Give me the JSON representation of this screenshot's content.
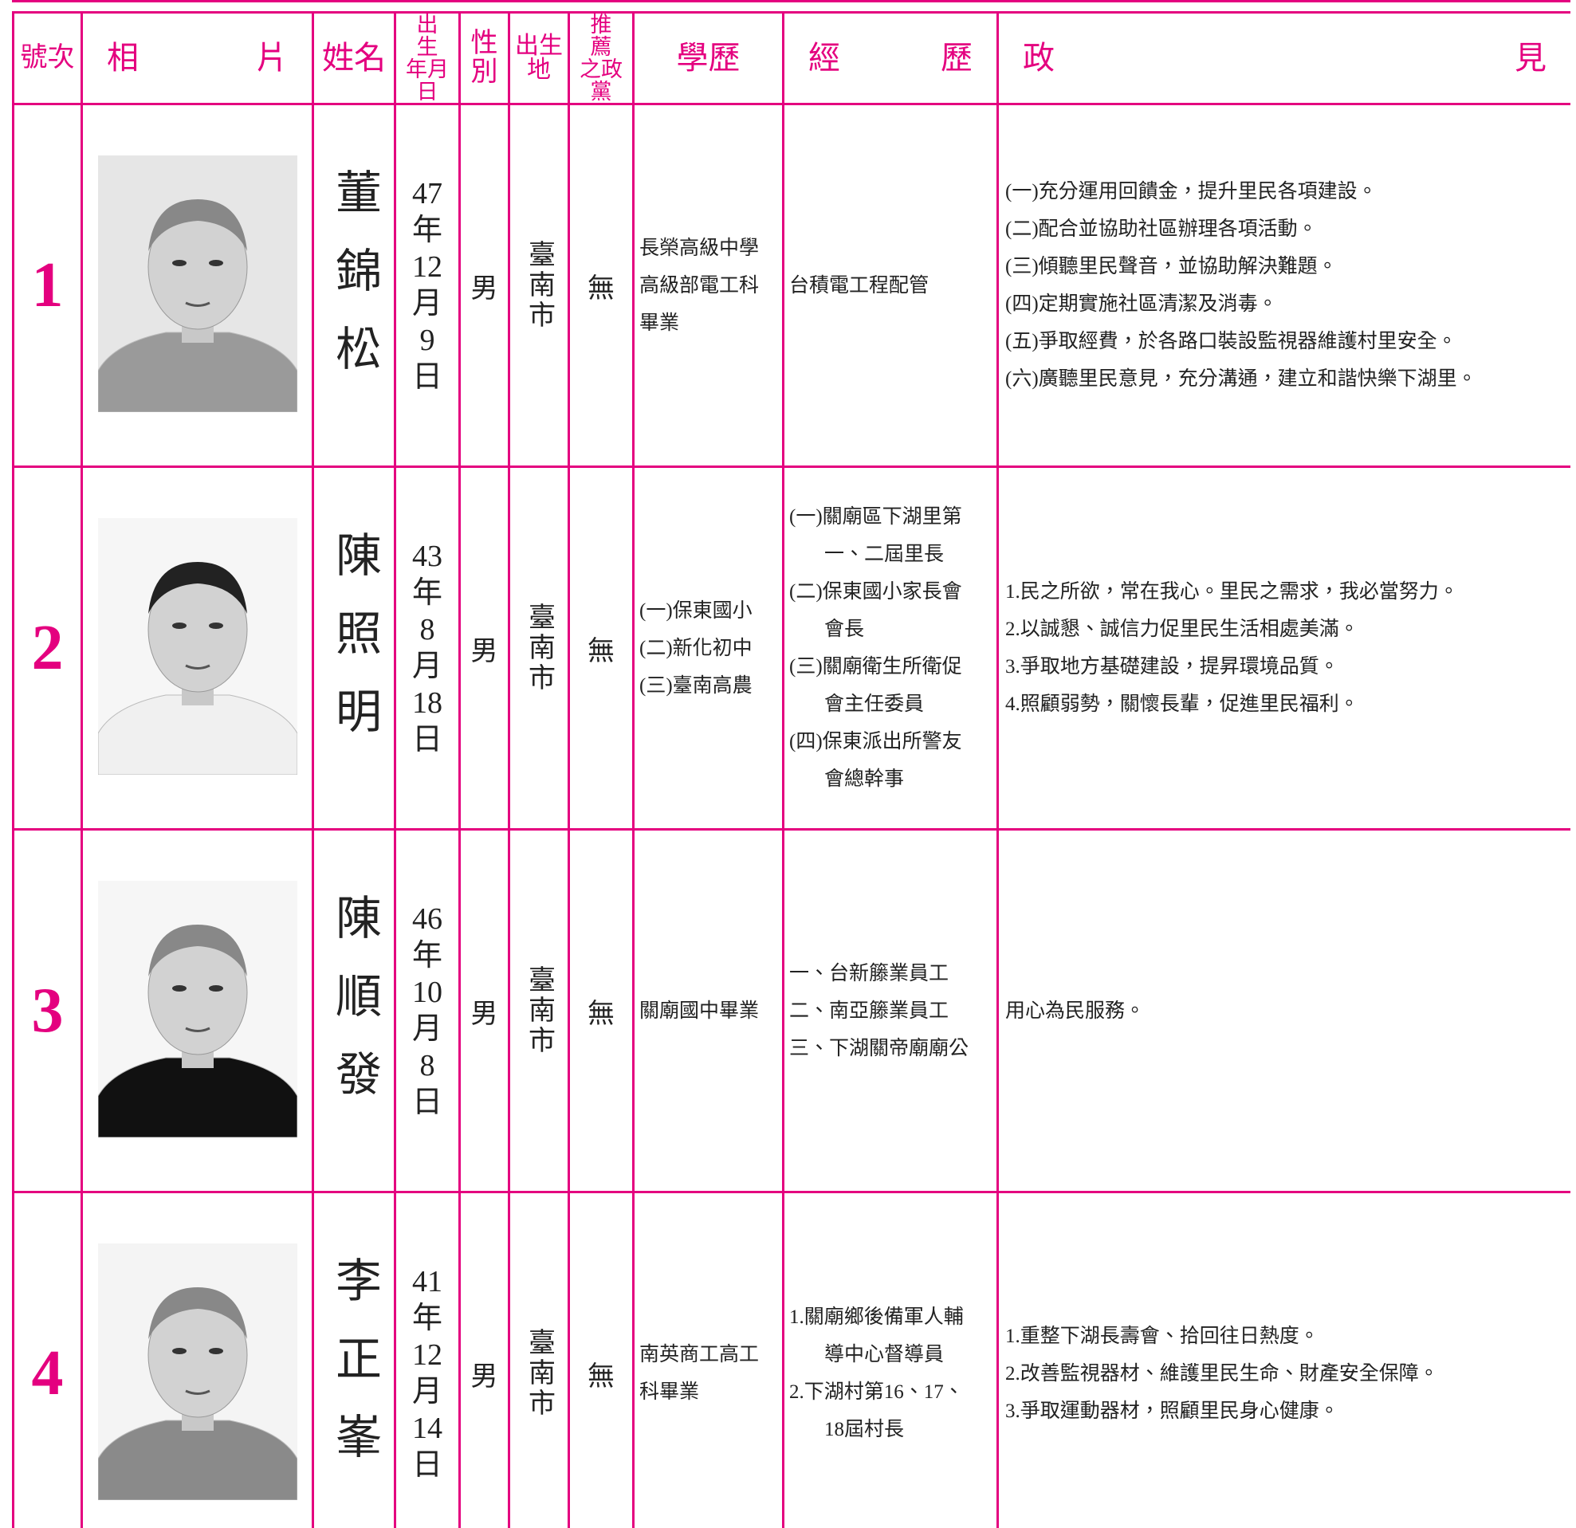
{
  "header": [
    "號次",
    [
      "相",
      "片"
    ],
    "姓名",
    [
      "出　生",
      "年月日"
    ],
    [
      "性",
      "別"
    ],
    "出生地",
    [
      "推　薦",
      "之政黨"
    ],
    "學歷",
    [
      "經",
      "歷"
    ],
    [
      "政",
      "見"
    ]
  ],
  "rows": [
    {
      "number": "1",
      "name": "董錦松",
      "birth": [
        "47",
        "年",
        "12",
        "月",
        "9",
        "日"
      ],
      "gender": "男",
      "birthplace": "臺南市",
      "party": "無",
      "education": [
        "長榮高級中學",
        "高級部電工科",
        "畢業"
      ],
      "experience": [
        [
          "台積電工程配管"
        ]
      ],
      "platform": [
        "(一)充分運用回饋金，提升里民各項建設。",
        "(二)配合並協助社區辦理各項活動。",
        "(三)傾聽里民聲音，並協助解決難題。",
        "(四)定期實施社區清潔及消毒。",
        "(五)爭取經費，於各路口裝設監視器維護村里安全。",
        "(六)廣聽里民意見，充分溝通，建立和諧快樂下湖里。"
      ]
    },
    {
      "number": "2",
      "name": "陳照明",
      "birth": [
        "43",
        "年",
        "8",
        "月",
        "18",
        "日"
      ],
      "gender": "男",
      "birthplace": "臺南市",
      "party": "無",
      "education": [
        "(一)保東國小",
        "(二)新化初中",
        "(三)臺南高農"
      ],
      "experience": [
        [
          "(一)關廟區下湖里第",
          "一、二屆里長"
        ],
        [
          "(二)保東國小家長會",
          "會長"
        ],
        [
          "(三)關廟衛生所衛促",
          "會主任委員"
        ],
        [
          "(四)保東派出所警友",
          "會總幹事"
        ]
      ],
      "platform": [
        "1.民之所欲，常在我心。里民之需求，我必當努力。",
        "2.以誠懇、誠信力促里民生活相處美滿。",
        "3.爭取地方基礎建設，提昇環境品質。",
        "4.照顧弱勢，關懷長輩，促進里民福利。"
      ]
    },
    {
      "number": "3",
      "name": "陳順發",
      "birth": [
        "46",
        "年",
        "10",
        "月",
        "8",
        "日"
      ],
      "gender": "男",
      "birthplace": "臺南市",
      "party": "無",
      "education": [
        "關廟國中畢業"
      ],
      "experience": [
        [
          "一、台新籐業員工"
        ],
        [
          "二、南亞籐業員工"
        ],
        [
          "三、下湖關帝廟廟公"
        ]
      ],
      "platform": [
        "用心為民服務。"
      ]
    },
    {
      "number": "4",
      "name": "李正峯",
      "birth": [
        "41",
        "年",
        "12",
        "月",
        "14",
        "日"
      ],
      "gender": "男",
      "birthplace": "臺南市",
      "party": "無",
      "education": [
        "南英商工高工",
        "科畢業"
      ],
      "experience": [
        [
          "1.關廟鄉後備軍人輔",
          "導中心督導員"
        ],
        [
          "2.下湖村第16、17、",
          "18屆村長"
        ]
      ],
      "platform": [
        "1.重整下湖長壽會、拾回往日熱度。",
        "2.改善監視器材、維護里民生命、財產安全保障。",
        "3.爭取運動器材，照顧里民身心健康。"
      ]
    }
  ]
}
